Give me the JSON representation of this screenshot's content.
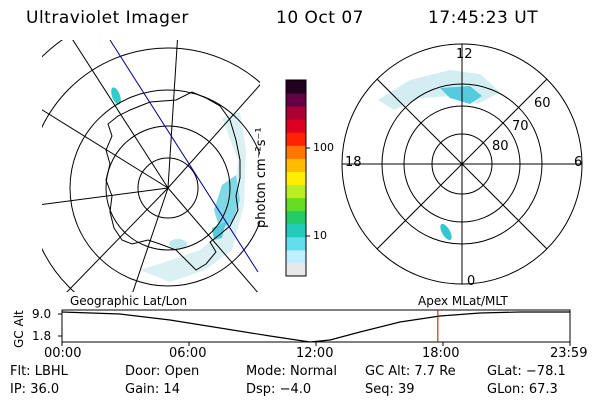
{
  "header": {
    "title": "Ultraviolet Imager",
    "date": "10 Oct 07",
    "time": "17:45:23 UT"
  },
  "colorbar": {
    "unit_label": "photon cm⁻²s⁻¹",
    "ticks": [
      {
        "label": "100",
        "value": 100
      },
      {
        "label": "10",
        "value": 10
      }
    ],
    "colors_bottom_to_top": [
      "#e8e8e8",
      "#bfeeff",
      "#66ddee",
      "#22ccbb",
      "#22cc66",
      "#66dd22",
      "#bbee22",
      "#ffee00",
      "#ffbb00",
      "#ff7700",
      "#ff2200",
      "#dd0022",
      "#aa0033",
      "#660044",
      "#220022"
    ]
  },
  "left_panel": {
    "projection_label": "Geographic Lat/Lon"
  },
  "right_panel": {
    "projection_label": "Apex  MLat/MLT",
    "mlt_labels": {
      "top": "12",
      "left": "18",
      "right": "6",
      "bottom": "0"
    },
    "mlat_labels": [
      "60",
      "70",
      "80"
    ]
  },
  "altitude_strip": {
    "axis_label": "GC Alt",
    "y_ticks": [
      "9.0",
      "1.8"
    ],
    "x_ticks": [
      "00:00",
      "06:00",
      "12:00",
      "18:00",
      "23:59"
    ],
    "marker_time_hours": 17.756,
    "marker_color": "#cc0000"
  },
  "status": {
    "flt_label": "Flt:",
    "flt_value": "LBHL",
    "door_label": "Door:",
    "door_value": "Open",
    "mode_label": "Mode:",
    "mode_value": "Normal",
    "gcalt_label": "GC Alt:",
    "gcalt_value": "7.7 Re",
    "glat_label": "GLat:",
    "glat_value": "−78.1",
    "ip_label": "IP:",
    "ip_value": "36.0",
    "gain_label": "Gain:",
    "gain_value": "14",
    "dsp_label": "Dsp:",
    "dsp_value": "−4.0",
    "seq_label": "Seq:",
    "seq_value": "39",
    "glon_label": "GLon:",
    "glon_value": "67.3"
  }
}
